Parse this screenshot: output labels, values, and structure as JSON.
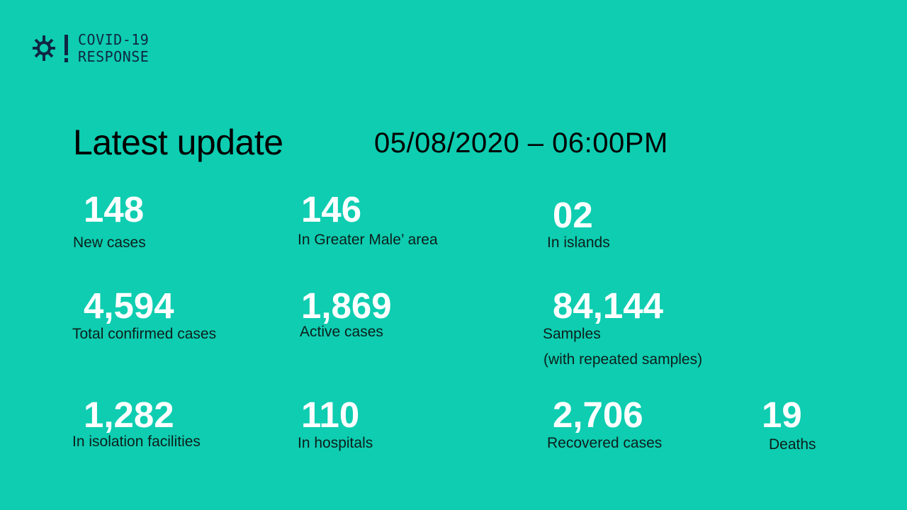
{
  "brand": {
    "line1": "COVID-19",
    "line2": "RESPONSE"
  },
  "header": {
    "title": "Latest update",
    "datetime": "05/08/2020 – 06:00PM"
  },
  "stats": {
    "new_cases": {
      "value": "148",
      "label": "New cases"
    },
    "greater_male": {
      "value": "146",
      "label": "In Greater Male’ area"
    },
    "islands": {
      "value": "02",
      "label": "In islands"
    },
    "total_confirmed": {
      "value": "4,594",
      "label": "Total confirmed cases"
    },
    "active": {
      "value": "1,869",
      "label": "Active cases"
    },
    "samples": {
      "value": "84,144",
      "label": "Samples",
      "note": "(with repeated samples)"
    },
    "isolation": {
      "value": "1,282",
      "label": "In isolation facilities"
    },
    "hospitals": {
      "value": "110",
      "label": "In hospitals"
    },
    "recovered": {
      "value": "2,706",
      "label": "Recovered cases"
    },
    "deaths": {
      "value": "19",
      "label": "Deaths"
    }
  },
  "colors": {
    "background": "#0ecdb1",
    "number": "#ffffff",
    "logo": "#0f2742"
  }
}
